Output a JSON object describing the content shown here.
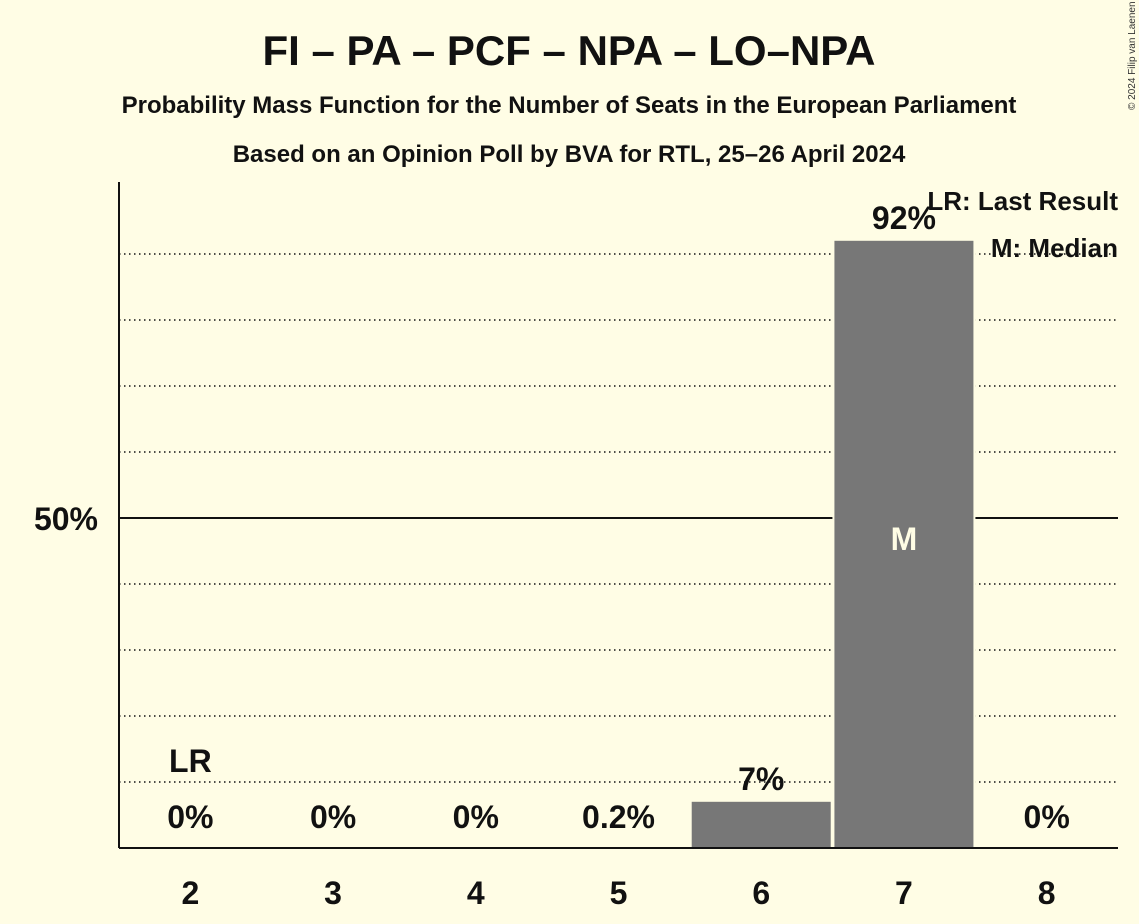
{
  "chart_data": {
    "type": "bar",
    "title": "FI – PA – PCF – NPA – LO–NPA",
    "subtitle1": "Probability Mass Function for the Number of Seats in the European Parliament",
    "subtitle2": "Based on an Opinion Poll by BVA for RTL, 25–26 April 2024",
    "categories": [
      "2",
      "3",
      "4",
      "5",
      "6",
      "7",
      "8"
    ],
    "values": [
      0,
      0,
      0,
      0.2,
      7,
      92,
      0
    ],
    "labels": [
      "0%",
      "0%",
      "0%",
      "0.2%",
      "7%",
      "92%",
      "0%"
    ],
    "ylim": [
      0,
      100
    ],
    "ytick_label": "50%",
    "last_result_category": "2",
    "last_result_marker": "LR",
    "median_category": "7",
    "median_marker": "M",
    "legend": {
      "last_result": "LR: Last Result",
      "median": "M: Median"
    },
    "bar_color": "#777777",
    "background": "#fffde5",
    "grid": "dotted",
    "copyright": "© 2024 Filip van Laenen"
  }
}
